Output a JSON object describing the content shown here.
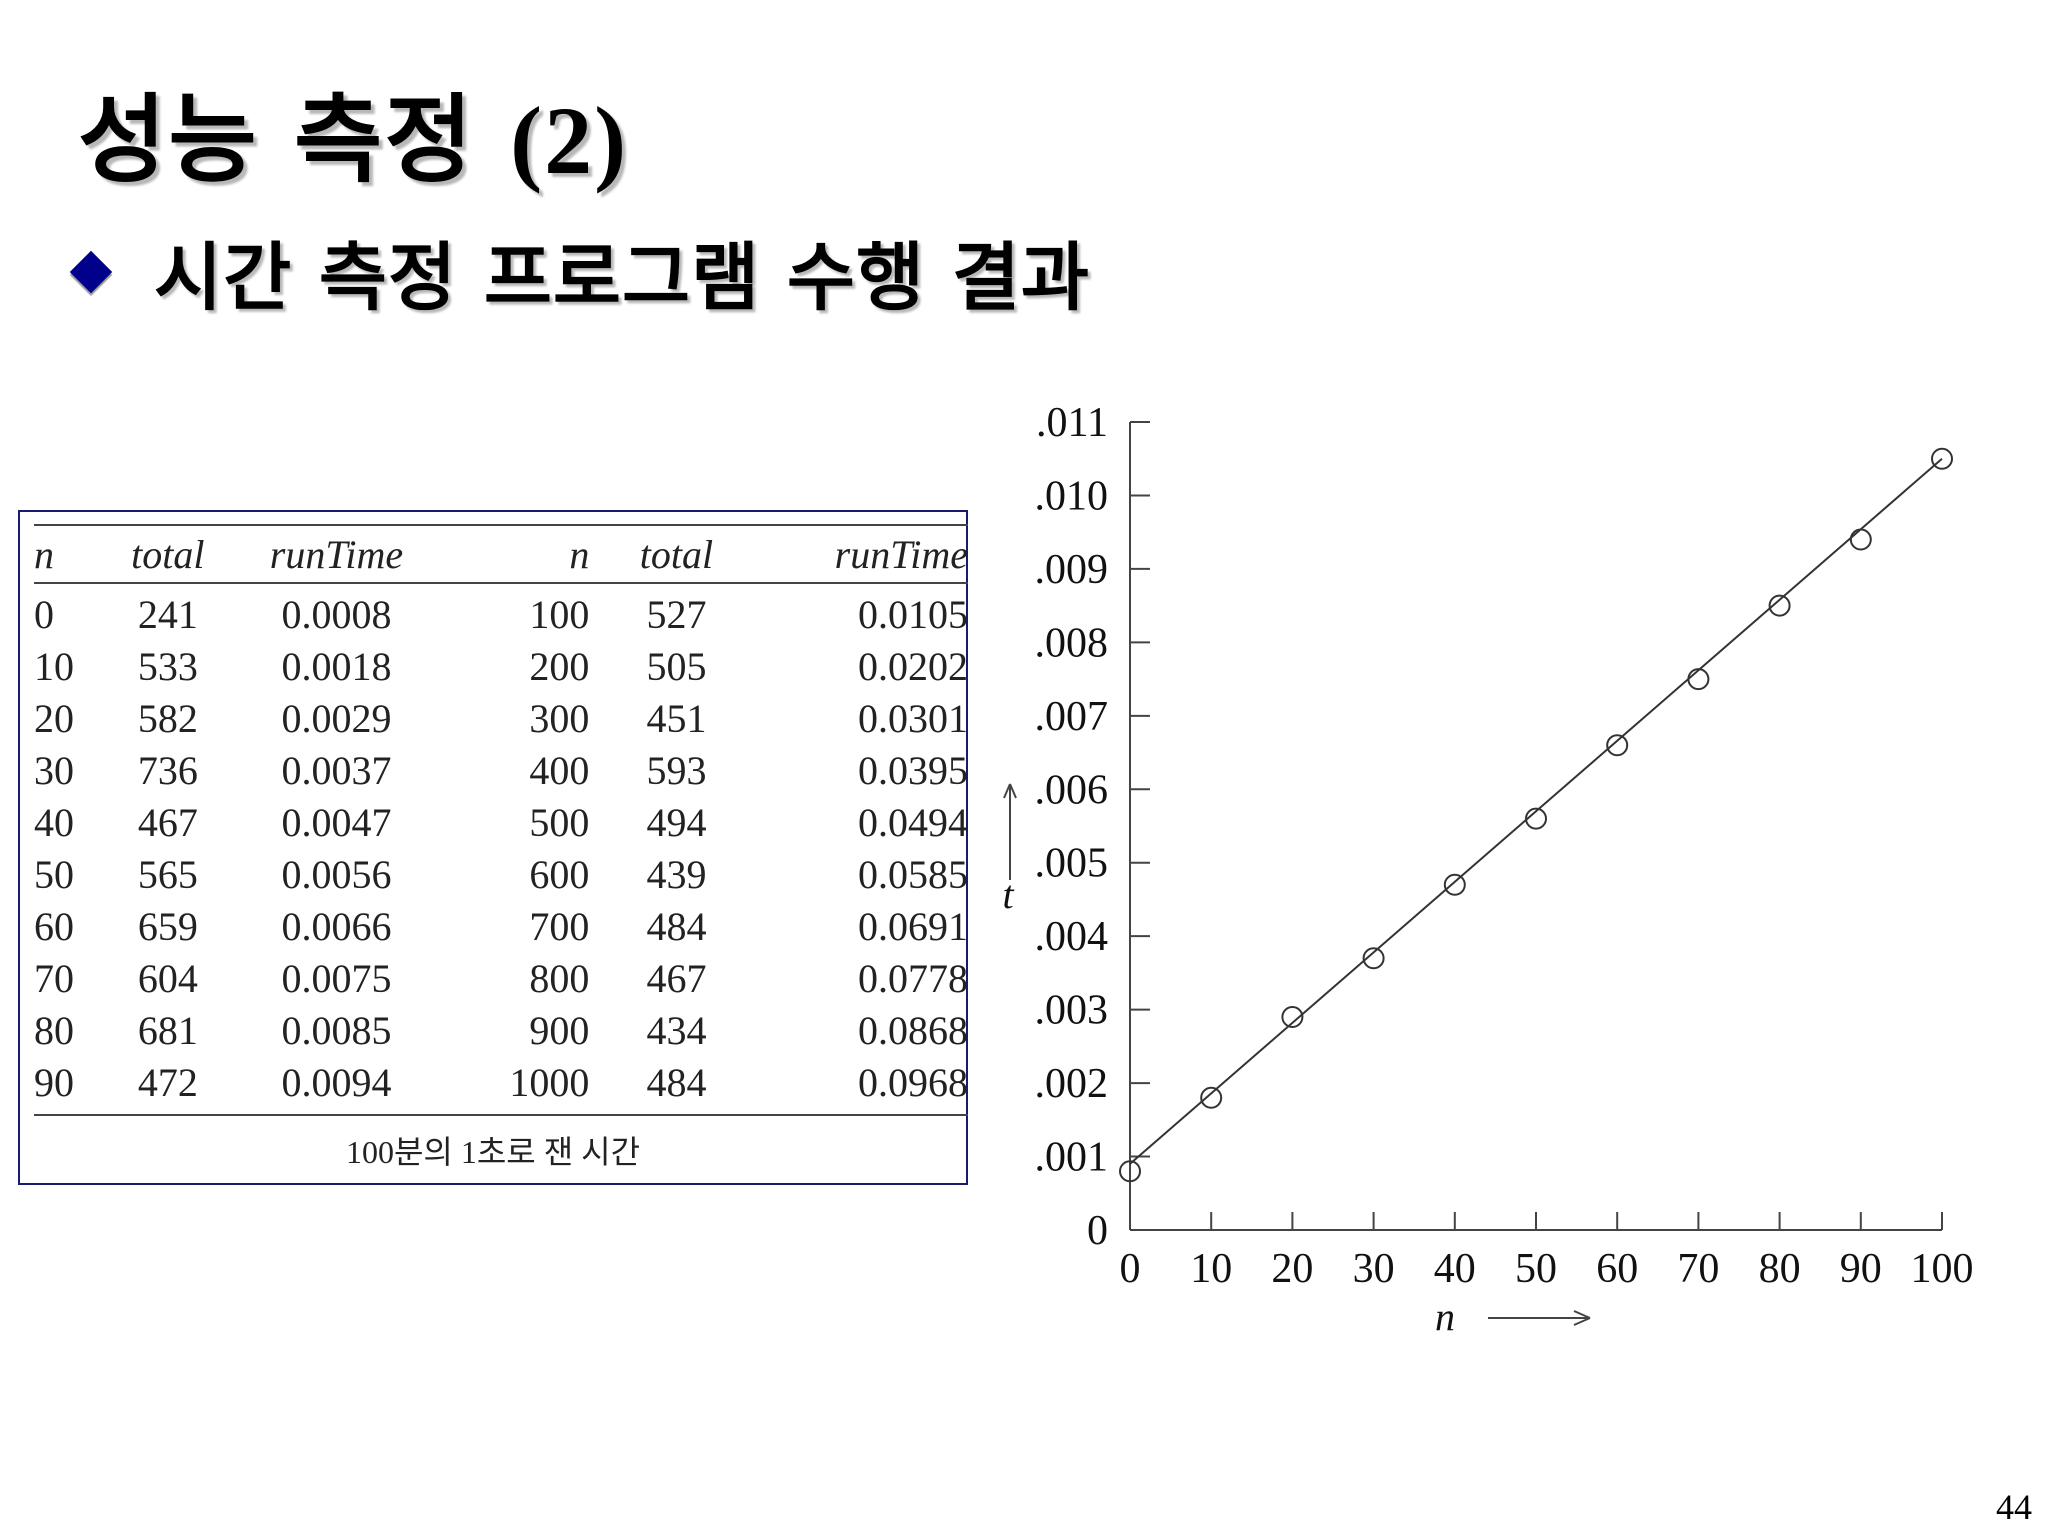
{
  "slide": {
    "title": "성능 측정",
    "title_num": "(2)",
    "bullet": "시간 측정 프로그램 수행 결과",
    "page_number": "44"
  },
  "table": {
    "headers": [
      "n",
      "total",
      "runTime",
      "n",
      "total",
      "runTime"
    ],
    "rows": [
      [
        "0",
        "241",
        "0.0008",
        "100",
        "527",
        "0.0105"
      ],
      [
        "10",
        "533",
        "0.0018",
        "200",
        "505",
        "0.0202"
      ],
      [
        "20",
        "582",
        "0.0029",
        "300",
        "451",
        "0.0301"
      ],
      [
        "30",
        "736",
        "0.0037",
        "400",
        "593",
        "0.0395"
      ],
      [
        "40",
        "467",
        "0.0047",
        "500",
        "494",
        "0.0494"
      ],
      [
        "50",
        "565",
        "0.0056",
        "600",
        "439",
        "0.0585"
      ],
      [
        "60",
        "659",
        "0.0066",
        "700",
        "484",
        "0.0691"
      ],
      [
        "70",
        "604",
        "0.0075",
        "800",
        "467",
        "0.0778"
      ],
      [
        "80",
        "681",
        "0.0085",
        "900",
        "434",
        "0.0868"
      ],
      [
        "90",
        "472",
        "0.0094",
        "1000",
        "484",
        "0.0968"
      ]
    ],
    "caption": "100분의 1초로 잰 시간"
  },
  "chart_data": {
    "type": "scatter",
    "xlabel": "n",
    "ylabel": "t",
    "xlim": [
      0,
      100
    ],
    "ylim": [
      0,
      0.011
    ],
    "x_ticks": [
      "0",
      "10",
      "20",
      "30",
      "40",
      "50",
      "60",
      "70",
      "80",
      "90",
      "100"
    ],
    "y_ticks": [
      "0",
      ".001",
      ".002",
      ".003",
      ".004",
      ".005",
      ".006",
      ".007",
      ".008",
      ".009",
      ".010",
      ".011"
    ],
    "x": [
      0,
      10,
      20,
      30,
      40,
      50,
      60,
      70,
      80,
      90,
      100
    ],
    "y": [
      0.0008,
      0.0018,
      0.0029,
      0.0037,
      0.0047,
      0.0056,
      0.0066,
      0.0075,
      0.0085,
      0.0094,
      0.0105
    ],
    "fit_line": {
      "y_at_0": 0.0009,
      "y_at_100": 0.0105
    },
    "grid": false,
    "marker": "open-circle"
  }
}
